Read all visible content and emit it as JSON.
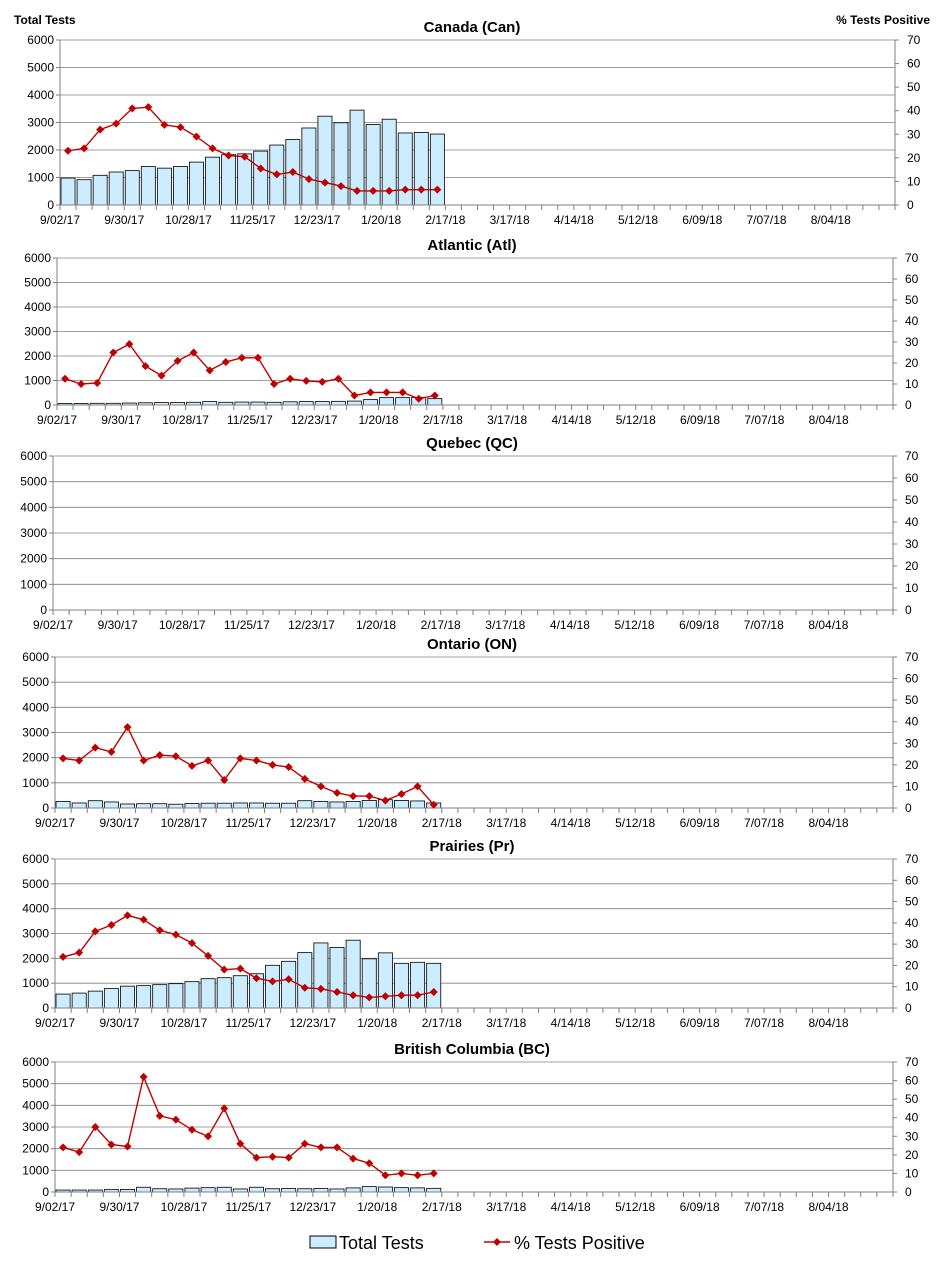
{
  "header": {
    "left_axis_title": "Total Tests",
    "right_axis_title": "% Tests Positive"
  },
  "legend": {
    "bar_label": "Total Tests",
    "line_label": "% Tests Positive"
  },
  "colors": {
    "bar_fill": "#CCECFF",
    "bar_stroke": "#000000",
    "line": "#C00000",
    "grid": "#808080",
    "axis": "#808080"
  },
  "chart_data": [
    {
      "type": "bar+line",
      "title": "Canada (Can)",
      "x_tick_labels": [
        "9/02/17",
        "9/30/17",
        "10/28/17",
        "11/25/17",
        "12/23/17",
        "1/20/18",
        "2/17/18",
        "3/17/18",
        "4/14/18",
        "5/12/18",
        "6/09/18",
        "7/07/18",
        "8/04/18"
      ],
      "weeks_total": 52,
      "y_left": {
        "label": "Total Tests",
        "range": [
          0,
          6000
        ],
        "ticks": [
          0,
          1000,
          2000,
          3000,
          4000,
          5000,
          6000
        ]
      },
      "y_right": {
        "label": "% Tests Positive",
        "range": [
          0,
          70
        ],
        "ticks": [
          0,
          10,
          20,
          30,
          40,
          50,
          60,
          70
        ]
      },
      "series": [
        {
          "name": "Total Tests",
          "kind": "bar",
          "values": [
            980,
            920,
            1080,
            1200,
            1250,
            1400,
            1340,
            1400,
            1560,
            1740,
            1830,
            1860,
            1960,
            2180,
            2380,
            2800,
            3230,
            2990,
            3450,
            2930,
            3120,
            2620,
            2640,
            2580
          ]
        },
        {
          "name": "% Tests Positive",
          "kind": "line",
          "values": [
            23,
            24,
            32,
            34.5,
            41,
            41.5,
            34,
            33,
            29,
            24,
            21,
            20.5,
            15.5,
            13,
            14,
            11,
            9.5,
            8,
            6,
            6,
            6,
            6.5,
            6.5,
            6.5
          ]
        }
      ]
    },
    {
      "type": "bar+line",
      "title": "Atlantic (Atl)",
      "x_tick_labels": [
        "9/02/17",
        "9/30/17",
        "10/28/17",
        "11/25/17",
        "12/23/17",
        "1/20/18",
        "2/17/18",
        "3/17/18",
        "4/14/18",
        "5/12/18",
        "6/09/18",
        "7/07/18",
        "8/04/18"
      ],
      "weeks_total": 52,
      "y_left": {
        "label": "Total Tests",
        "range": [
          0,
          6000
        ],
        "ticks": [
          0,
          1000,
          2000,
          3000,
          4000,
          5000,
          6000
        ]
      },
      "y_right": {
        "label": "% Tests Positive",
        "range": [
          0,
          70
        ],
        "ticks": [
          0,
          10,
          20,
          30,
          40,
          50,
          60,
          70
        ]
      },
      "series": [
        {
          "name": "Total Tests",
          "kind": "bar",
          "values": [
            60,
            60,
            70,
            70,
            80,
            90,
            100,
            100,
            110,
            140,
            110,
            120,
            120,
            110,
            130,
            140,
            140,
            150,
            160,
            220,
            300,
            300,
            310,
            260
          ]
        },
        {
          "name": "% Tests Positive",
          "kind": "line",
          "values": [
            12.5,
            10,
            10.5,
            25,
            29,
            18.5,
            14,
            21,
            25,
            16.5,
            20.5,
            22.5,
            22.5,
            10,
            12.5,
            11.5,
            11,
            12.5,
            4.5,
            6,
            6,
            6,
            3,
            4.5
          ]
        }
      ]
    },
    {
      "type": "bar+line",
      "title": "Quebec (QC)",
      "x_tick_labels": [
        "9/02/17",
        "9/30/17",
        "10/28/17",
        "11/25/17",
        "12/23/17",
        "1/20/18",
        "2/17/18",
        "3/17/18",
        "4/14/18",
        "5/12/18",
        "6/09/18",
        "7/07/18",
        "8/04/18"
      ],
      "weeks_total": 52,
      "y_left": {
        "label": "Total Tests",
        "range": [
          0,
          6000
        ],
        "ticks": [
          0,
          1000,
          2000,
          3000,
          4000,
          5000,
          6000
        ]
      },
      "y_right": {
        "label": "% Tests Positive",
        "range": [
          0,
          70
        ],
        "ticks": [
          0,
          10,
          20,
          30,
          40,
          50,
          60,
          70
        ]
      },
      "series": [
        {
          "name": "Total Tests",
          "kind": "bar",
          "values": []
        },
        {
          "name": "% Tests Positive",
          "kind": "line",
          "values": []
        }
      ]
    },
    {
      "type": "bar+line",
      "title": "Ontario (ON)",
      "x_tick_labels": [
        "9/02/17",
        "9/30/17",
        "10/28/17",
        "11/25/17",
        "12/23/17",
        "1/20/18",
        "2/17/18",
        "3/17/18",
        "4/14/18",
        "5/12/18",
        "6/09/18",
        "7/07/18",
        "8/04/18"
      ],
      "weeks_total": 52,
      "y_left": {
        "label": "Total Tests",
        "range": [
          0,
          6000
        ],
        "ticks": [
          0,
          1000,
          2000,
          3000,
          4000,
          5000,
          6000
        ]
      },
      "y_right": {
        "label": "% Tests Positive",
        "range": [
          0,
          70
        ],
        "ticks": [
          0,
          10,
          20,
          30,
          40,
          50,
          60,
          70
        ]
      },
      "series": [
        {
          "name": "Total Tests",
          "kind": "bar",
          "values": [
            260,
            200,
            290,
            240,
            160,
            170,
            170,
            150,
            180,
            190,
            190,
            200,
            200,
            190,
            190,
            290,
            260,
            240,
            260,
            300,
            330,
            300,
            280,
            200
          ]
        },
        {
          "name": "% Tests Positive",
          "kind": "line",
          "values": [
            23,
            22,
            28,
            26,
            37.5,
            22,
            24.5,
            24,
            19.5,
            22,
            13,
            23,
            22,
            20,
            19,
            13.5,
            10,
            7,
            5.5,
            5.5,
            3.5,
            6.5,
            10,
            1.5
          ]
        }
      ]
    },
    {
      "type": "bar+line",
      "title": "Prairies (Pr)",
      "x_tick_labels": [
        "9/02/17",
        "9/30/17",
        "10/28/17",
        "11/25/17",
        "12/23/17",
        "1/20/18",
        "2/17/18",
        "3/17/18",
        "4/14/18",
        "5/12/18",
        "6/09/18",
        "7/07/18",
        "8/04/18"
      ],
      "weeks_total": 52,
      "y_left": {
        "label": "Total Tests",
        "range": [
          0,
          6000
        ],
        "ticks": [
          0,
          1000,
          2000,
          3000,
          4000,
          5000,
          6000
        ]
      },
      "y_right": {
        "label": "% Tests Positive",
        "range": [
          0,
          70
        ],
        "ticks": [
          0,
          10,
          20,
          30,
          40,
          50,
          60,
          70
        ]
      },
      "series": [
        {
          "name": "Total Tests",
          "kind": "bar",
          "values": [
            560,
            600,
            680,
            780,
            880,
            900,
            940,
            980,
            1060,
            1180,
            1220,
            1300,
            1380,
            1720,
            1880,
            2230,
            2620,
            2440,
            2730,
            1980,
            2220,
            1800,
            1840,
            1800
          ]
        },
        {
          "name": "% Tests Positive",
          "kind": "line",
          "values": [
            24,
            26,
            36,
            39,
            43.5,
            41.5,
            36.5,
            34.5,
            30.5,
            24.5,
            18,
            18.5,
            14,
            12.5,
            13.5,
            9.5,
            9,
            7.5,
            6,
            5,
            5.5,
            6,
            6,
            7.5
          ]
        }
      ]
    },
    {
      "type": "bar+line",
      "title": "British Columbia (BC)",
      "x_tick_labels": [
        "9/02/17",
        "9/30/17",
        "10/28/17",
        "11/25/17",
        "12/23/17",
        "1/20/18",
        "2/17/18",
        "3/17/18",
        "4/14/18",
        "5/12/18",
        "6/09/18",
        "7/07/18",
        "8/04/18"
      ],
      "weeks_total": 52,
      "y_left": {
        "label": "Total Tests",
        "range": [
          0,
          6000
        ],
        "ticks": [
          0,
          1000,
          2000,
          3000,
          4000,
          5000,
          6000
        ]
      },
      "y_right": {
        "label": "% Tests Positive",
        "range": [
          0,
          70
        ],
        "ticks": [
          0,
          10,
          20,
          30,
          40,
          50,
          60,
          70
        ]
      },
      "series": [
        {
          "name": "Total Tests",
          "kind": "bar",
          "values": [
            90,
            90,
            90,
            110,
            120,
            220,
            150,
            140,
            180,
            200,
            220,
            140,
            220,
            150,
            160,
            150,
            160,
            140,
            190,
            250,
            230,
            200,
            190,
            170
          ]
        },
        {
          "name": "% Tests Positive",
          "kind": "line",
          "values": [
            24,
            21.5,
            35,
            25.5,
            24.5,
            62,
            41,
            39,
            33.5,
            30,
            45,
            26,
            18.5,
            19,
            18.5,
            26,
            24,
            24,
            18,
            15.5,
            9,
            10,
            9,
            10
          ]
        }
      ]
    }
  ]
}
